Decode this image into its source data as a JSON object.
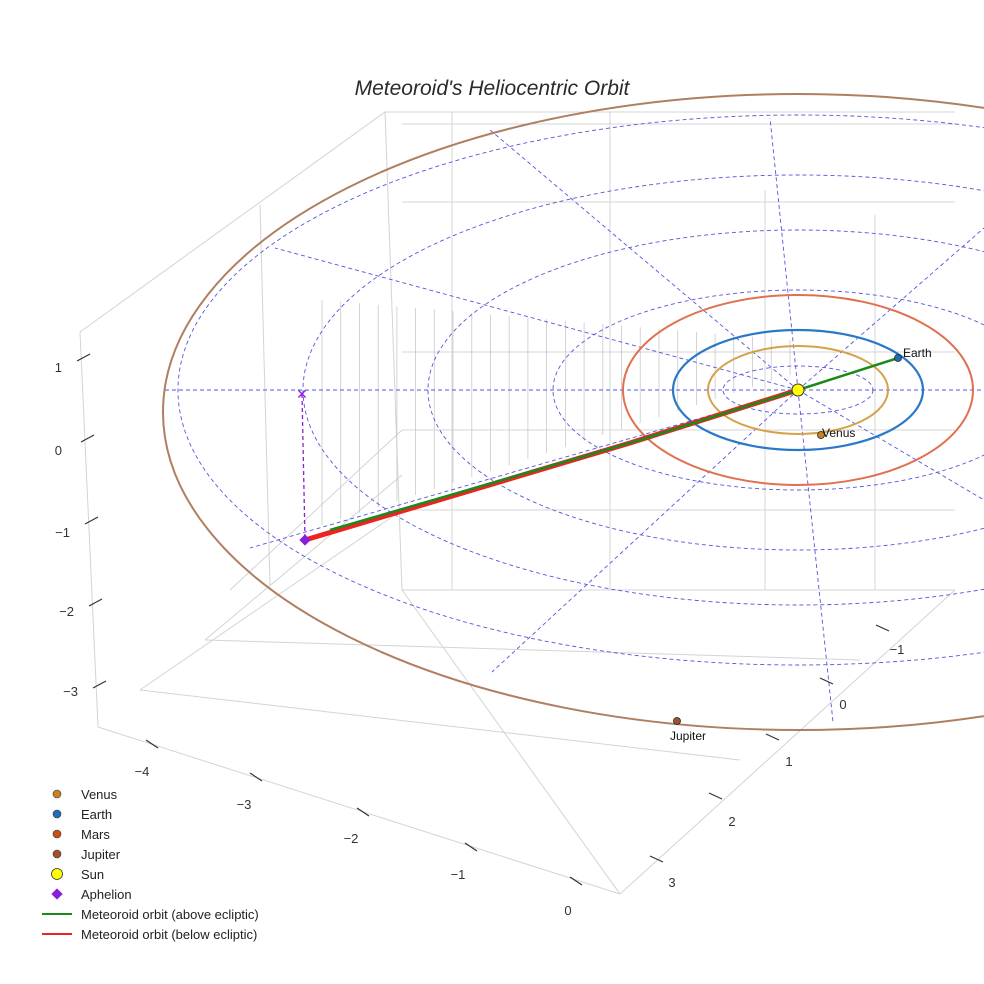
{
  "chart_data": {
    "type": "scatter",
    "title": "Meteoroid's Heliocentric Orbit",
    "projection": "3d",
    "z_ticks": [
      "1",
      "0",
      "−1",
      "−2",
      "−3"
    ],
    "x_ticks": [
      "−4",
      "−3",
      "−2",
      "−1",
      "0"
    ],
    "y_ticks": [
      "−1",
      "0",
      "1",
      "2",
      "3"
    ],
    "planets": [
      {
        "name": "Venus",
        "label": "Venus",
        "color": "#c9821f",
        "orbit_color": "#d4a24a",
        "orbit_radius_au": 0.72
      },
      {
        "name": "Earth",
        "label": "Earth",
        "color": "#1f6fb4",
        "orbit_color": "#2a78c8",
        "orbit_radius_au": 1.0
      },
      {
        "name": "Mars",
        "label": "",
        "color": "#c8501a",
        "orbit_color": "#e07050",
        "orbit_radius_au": 1.52
      },
      {
        "name": "Jupiter",
        "label": "Jupiter",
        "color": "#a0522d",
        "orbit_color": "#b07f62",
        "orbit_radius_au": 5.2
      }
    ],
    "sun": {
      "name": "Sun",
      "color": "#ffff00",
      "x": 0,
      "y": 0,
      "z": 0
    },
    "aphelion": {
      "name": "Aphelion",
      "color": "#8a1fd8"
    },
    "meteoroid_series": [
      {
        "name": "Meteoroid orbit (above ecliptic)",
        "color": "#1a8a1a"
      },
      {
        "name": "Meteoroid orbit (below ecliptic)",
        "color": "#ee2222"
      }
    ],
    "ecliptic_grid_color": "#5555dd",
    "legend_position": "bottom-left"
  }
}
